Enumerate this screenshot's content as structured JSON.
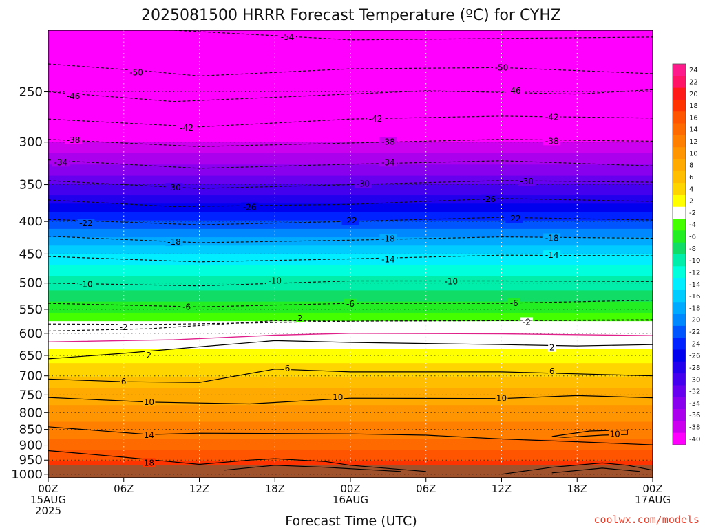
{
  "chart_data": {
    "type": "heatmap",
    "title": "2025081500 HRRR Forecast Temperature (ºC) for CYHZ",
    "xlabel": "Forecast Time (UTC)",
    "ylabel": "",
    "credit": "coolwx.com/models",
    "x_ticks": [
      {
        "hour": 0,
        "lines": [
          "00Z",
          "15AUG",
          "2025"
        ]
      },
      {
        "hour": 6,
        "lines": [
          "06Z"
        ]
      },
      {
        "hour": 12,
        "lines": [
          "12Z"
        ]
      },
      {
        "hour": 18,
        "lines": [
          "18Z"
        ]
      },
      {
        "hour": 24,
        "lines": [
          "00Z",
          "16AUG"
        ]
      },
      {
        "hour": 30,
        "lines": [
          "06Z"
        ]
      },
      {
        "hour": 36,
        "lines": [
          "12Z"
        ]
      },
      {
        "hour": 42,
        "lines": [
          "18Z"
        ]
      },
      {
        "hour": 48,
        "lines": [
          "00Z",
          "17AUG"
        ]
      }
    ],
    "xlim": [
      0,
      48
    ],
    "y_ticks": [
      250,
      300,
      350,
      400,
      450,
      500,
      550,
      600,
      650,
      700,
      750,
      800,
      850,
      900,
      950,
      1000
    ],
    "ylim_hpa": [
      200,
      1013
    ],
    "y_scale": "log-pressure",
    "x_gridlines": [
      6,
      12,
      18,
      24,
      30,
      36,
      42
    ],
    "ground_color": "#a0522d",
    "colorbar": {
      "labels": [
        24,
        22,
        20,
        18,
        16,
        14,
        12,
        10,
        8,
        6,
        4,
        2,
        -2,
        -4,
        -6,
        -8,
        -10,
        -12,
        -14,
        -16,
        -18,
        -20,
        -22,
        -24,
        -26,
        -28,
        -30,
        -32,
        -34,
        -36,
        -38,
        -40
      ],
      "colors": [
        "#ff1a8c",
        "#ff1466",
        "#ff1a1a",
        "#ff3300",
        "#ff5500",
        "#ff6a00",
        "#ff7f00",
        "#ff9500",
        "#ffaa00",
        "#ffbf00",
        "#ffd500",
        "#ffff00",
        "#ffffff",
        "#44ff00",
        "#22ee22",
        "#11dd66",
        "#00eeaa",
        "#00ffdd",
        "#00eeff",
        "#00ccff",
        "#00aaff",
        "#0088ff",
        "#0055ff",
        "#0022ff",
        "#0000ee",
        "#2200ee",
        "#4400ee",
        "#6600ee",
        "#8800ee",
        "#aa00ee",
        "#cc00ee",
        "#ff00ff"
      ],
      "position": "right"
    },
    "temperature_profile": [
      {
        "p": 200,
        "t": -55
      },
      {
        "p": 225,
        "t": -51
      },
      {
        "p": 250,
        "t": -47
      },
      {
        "p": 275,
        "t": -43
      },
      {
        "p": 300,
        "t": -38
      },
      {
        "p": 325,
        "t": -34
      },
      {
        "p": 350,
        "t": -30
      },
      {
        "p": 375,
        "t": -26
      },
      {
        "p": 400,
        "t": -22
      },
      {
        "p": 425,
        "t": -18
      },
      {
        "p": 450,
        "t": -14
      },
      {
        "p": 500,
        "t": -9
      },
      {
        "p": 550,
        "t": -5
      },
      {
        "p": 580,
        "t": -1
      },
      {
        "p": 600,
        "t": 0
      },
      {
        "p": 625,
        "t": 1
      },
      {
        "p": 650,
        "t": 3
      },
      {
        "p": 700,
        "t": 6
      },
      {
        "p": 750,
        "t": 9
      },
      {
        "p": 800,
        "t": 11
      },
      {
        "p": 850,
        "t": 13
      },
      {
        "p": 900,
        "t": 15
      },
      {
        "p": 950,
        "t": 18
      },
      {
        "p": 1000,
        "t": 21
      },
      {
        "p": 1013,
        "t": 21
      }
    ],
    "contours": [
      {
        "label": "-54",
        "style": "dashed",
        "pts": [
          [
            10,
            200
          ],
          [
            24,
            207
          ],
          [
            48,
            205
          ]
        ],
        "label_at": [
          [
            19,
            205
          ]
        ]
      },
      {
        "label": "-50",
        "style": "dashed",
        "pts": [
          [
            0,
            226
          ],
          [
            8,
            232
          ],
          [
            12,
            236
          ],
          [
            24,
            230
          ],
          [
            36,
            229
          ],
          [
            48,
            234
          ]
        ],
        "label_at": [
          [
            7,
            233
          ],
          [
            36,
            229
          ]
        ]
      },
      {
        "label": "-46",
        "style": "dashed",
        "pts": [
          [
            0,
            250
          ],
          [
            10,
            259
          ],
          [
            18,
            255
          ],
          [
            30,
            249
          ],
          [
            42,
            252
          ],
          [
            48,
            248
          ]
        ],
        "label_at": [
          [
            2,
            254
          ],
          [
            37,
            249
          ]
        ]
      },
      {
        "label": "-42",
        "style": "dashed",
        "pts": [
          [
            0,
            276
          ],
          [
            12,
            284
          ],
          [
            24,
            276
          ],
          [
            36,
            273
          ],
          [
            48,
            275
          ]
        ],
        "label_at": [
          [
            11,
            285
          ],
          [
            26,
            276
          ],
          [
            40,
            274
          ]
        ]
      },
      {
        "label": "-38",
        "style": "dashed",
        "pts": [
          [
            0,
            297
          ],
          [
            12,
            305
          ],
          [
            24,
            301
          ],
          [
            36,
            297
          ],
          [
            48,
            299
          ]
        ],
        "label_at": [
          [
            2,
            298
          ],
          [
            27,
            300
          ],
          [
            40,
            299
          ]
        ]
      },
      {
        "label": "-34",
        "style": "dashed",
        "pts": [
          [
            0,
            320
          ],
          [
            12,
            330
          ],
          [
            24,
            325
          ],
          [
            36,
            321
          ],
          [
            48,
            327
          ]
        ],
        "label_at": [
          [
            1,
            323
          ],
          [
            27,
            323
          ]
        ]
      },
      {
        "label": "-30",
        "style": "dashed",
        "pts": [
          [
            0,
            345
          ],
          [
            12,
            355
          ],
          [
            24,
            350
          ],
          [
            36,
            345
          ],
          [
            48,
            347
          ]
        ],
        "label_at": [
          [
            10,
            354
          ],
          [
            25,
            349
          ],
          [
            38,
            346
          ]
        ]
      },
      {
        "label": "-26",
        "style": "dashed",
        "pts": [
          [
            0,
            370
          ],
          [
            10,
            379
          ],
          [
            24,
            376
          ],
          [
            36,
            368
          ],
          [
            48,
            372
          ]
        ],
        "label_at": [
          [
            16,
            380
          ],
          [
            35,
            369
          ]
        ]
      },
      {
        "label": "-22",
        "style": "dashed",
        "pts": [
          [
            0,
            397
          ],
          [
            12,
            405
          ],
          [
            24,
            400
          ],
          [
            36,
            394
          ],
          [
            48,
            398
          ]
        ],
        "label_at": [
          [
            3,
            403
          ],
          [
            24,
            399
          ],
          [
            37,
            396
          ]
        ]
      },
      {
        "label": "-18",
        "style": "dashed",
        "pts": [
          [
            0,
            422
          ],
          [
            12,
            432
          ],
          [
            24,
            428
          ],
          [
            36,
            423
          ],
          [
            48,
            425
          ]
        ],
        "label_at": [
          [
            10,
            431
          ],
          [
            27,
            426
          ],
          [
            40,
            425
          ]
        ]
      },
      {
        "label": "-14",
        "style": "dashed",
        "pts": [
          [
            0,
            454
          ],
          [
            12,
            463
          ],
          [
            24,
            458
          ],
          [
            36,
            452
          ],
          [
            48,
            453
          ]
        ],
        "label_at": [
          [
            27,
            459
          ],
          [
            40,
            452
          ]
        ]
      },
      {
        "label": "-10",
        "style": "dashed",
        "pts": [
          [
            0,
            500
          ],
          [
            12,
            505
          ],
          [
            24,
            496
          ],
          [
            36,
            496
          ],
          [
            48,
            497
          ]
        ],
        "label_at": [
          [
            3,
            502
          ],
          [
            18,
            496
          ],
          [
            32,
            497
          ]
        ]
      },
      {
        "label": "-6",
        "style": "dashed",
        "pts": [
          [
            0,
            538
          ],
          [
            12,
            545
          ],
          [
            24,
            538
          ],
          [
            36,
            538
          ],
          [
            48,
            532
          ]
        ],
        "label_at": [
          [
            11,
            545
          ],
          [
            24,
            539
          ],
          [
            37,
            538
          ]
        ]
      },
      {
        "label": "-2",
        "style": "dashed",
        "pts": [
          [
            0,
            580
          ],
          [
            8,
            581
          ],
          [
            16,
            578
          ],
          [
            24,
            574
          ],
          [
            36,
            573
          ],
          [
            48,
            572
          ]
        ],
        "label_at": [
          [
            6,
            587
          ],
          [
            38,
            576
          ]
        ]
      },
      {
        "label": "2",
        "style": "dashed",
        "pts": [
          [
            0,
            595
          ],
          [
            8,
            590
          ],
          [
            18,
            573
          ],
          [
            24,
            574
          ],
          [
            48,
            571
          ]
        ],
        "label_at": [
          [
            20,
            568
          ]
        ]
      },
      {
        "label": "",
        "style": "magenta",
        "pts": [
          [
            0,
            619
          ],
          [
            10,
            614
          ],
          [
            18,
            604
          ],
          [
            24,
            600
          ],
          [
            36,
            601
          ],
          [
            48,
            605
          ]
        ],
        "label_at": []
      },
      {
        "label": "2",
        "style": "solid",
        "pts": [
          [
            0,
            658
          ],
          [
            6,
            645
          ],
          [
            12,
            630
          ],
          [
            18,
            616
          ],
          [
            24,
            620
          ],
          [
            36,
            625
          ],
          [
            42,
            628
          ],
          [
            48,
            625
          ]
        ],
        "label_at": [
          [
            8,
            650
          ],
          [
            40,
            632
          ]
        ]
      },
      {
        "label": "6",
        "style": "solid",
        "pts": [
          [
            0,
            708
          ],
          [
            6,
            715
          ],
          [
            12,
            717
          ],
          [
            18,
            683
          ],
          [
            24,
            690
          ],
          [
            36,
            690
          ],
          [
            48,
            700
          ]
        ],
        "label_at": [
          [
            6,
            715
          ],
          [
            19,
            682
          ],
          [
            40,
            688
          ]
        ]
      },
      {
        "label": "10",
        "style": "solid",
        "pts": [
          [
            0,
            757
          ],
          [
            8,
            770
          ],
          [
            16,
            775
          ],
          [
            24,
            759
          ],
          [
            36,
            760
          ],
          [
            42,
            752
          ],
          [
            48,
            758
          ]
        ],
        "label_at": [
          [
            8,
            770
          ],
          [
            23,
            757
          ],
          [
            36,
            760
          ]
        ]
      },
      {
        "label": "10",
        "style": "solid",
        "pts": [
          [
            40,
            872
          ],
          [
            43,
            855
          ],
          [
            46,
            852
          ],
          [
            46,
            866
          ],
          [
            44,
            868
          ],
          [
            41,
            875
          ],
          [
            40,
            872
          ]
        ],
        "label_at": [
          [
            45,
            865
          ]
        ]
      },
      {
        "label": "14",
        "style": "solid",
        "pts": [
          [
            0,
            842
          ],
          [
            8,
            866
          ],
          [
            12,
            862
          ],
          [
            24,
            864
          ],
          [
            30,
            868
          ],
          [
            36,
            880
          ],
          [
            42,
            889
          ],
          [
            48,
            899
          ]
        ],
        "label_at": [
          [
            8,
            868
          ]
        ]
      },
      {
        "label": "18",
        "style": "solid",
        "pts": [
          [
            0,
            918
          ],
          [
            6,
            940
          ],
          [
            12,
            965
          ],
          [
            16,
            950
          ],
          [
            18,
            945
          ],
          [
            22,
            955
          ],
          [
            24,
            968
          ],
          [
            30,
            990
          ]
        ],
        "label_at": [
          [
            8,
            960
          ]
        ]
      },
      {
        "label": "",
        "style": "solid",
        "pts": [
          [
            14,
            985
          ],
          [
            18,
            968
          ],
          [
            22,
            975
          ],
          [
            28,
            990
          ]
        ],
        "label_at": []
      },
      {
        "label": "",
        "style": "solid",
        "pts": [
          [
            36,
            1000
          ],
          [
            40,
            975
          ],
          [
            44,
            960
          ],
          [
            46,
            968
          ],
          [
            48,
            985
          ]
        ],
        "label_at": []
      },
      {
        "label": "",
        "style": "solid",
        "pts": [
          [
            40,
            995
          ],
          [
            44,
            978
          ],
          [
            47,
            990
          ]
        ],
        "label_at": []
      }
    ]
  }
}
